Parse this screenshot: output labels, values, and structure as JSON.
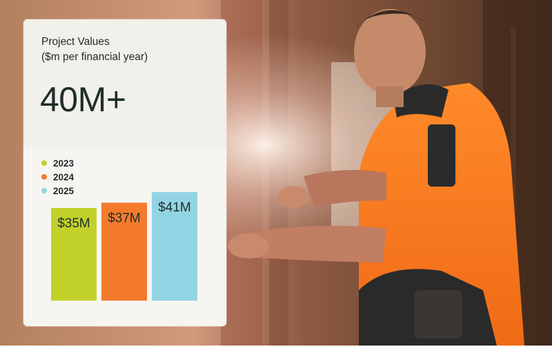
{
  "card": {
    "title_line1": "Project Values",
    "title_line2": "($m per financial year)",
    "headline": "40M+"
  },
  "chart_data": {
    "type": "bar",
    "categories": [
      "2023",
      "2024",
      "2025"
    ],
    "values": [
      35,
      37,
      41
    ],
    "data_labels": [
      "$35M",
      "$37M",
      "$41M"
    ],
    "colors": [
      "#c2d12a",
      "#f47a2c",
      "#93d4e4"
    ],
    "legend": [
      "2023",
      "2024",
      "2025"
    ],
    "legend_placement": "top-left",
    "title": "Project Values",
    "subtitle": "($m per financial year)",
    "grid": false
  }
}
